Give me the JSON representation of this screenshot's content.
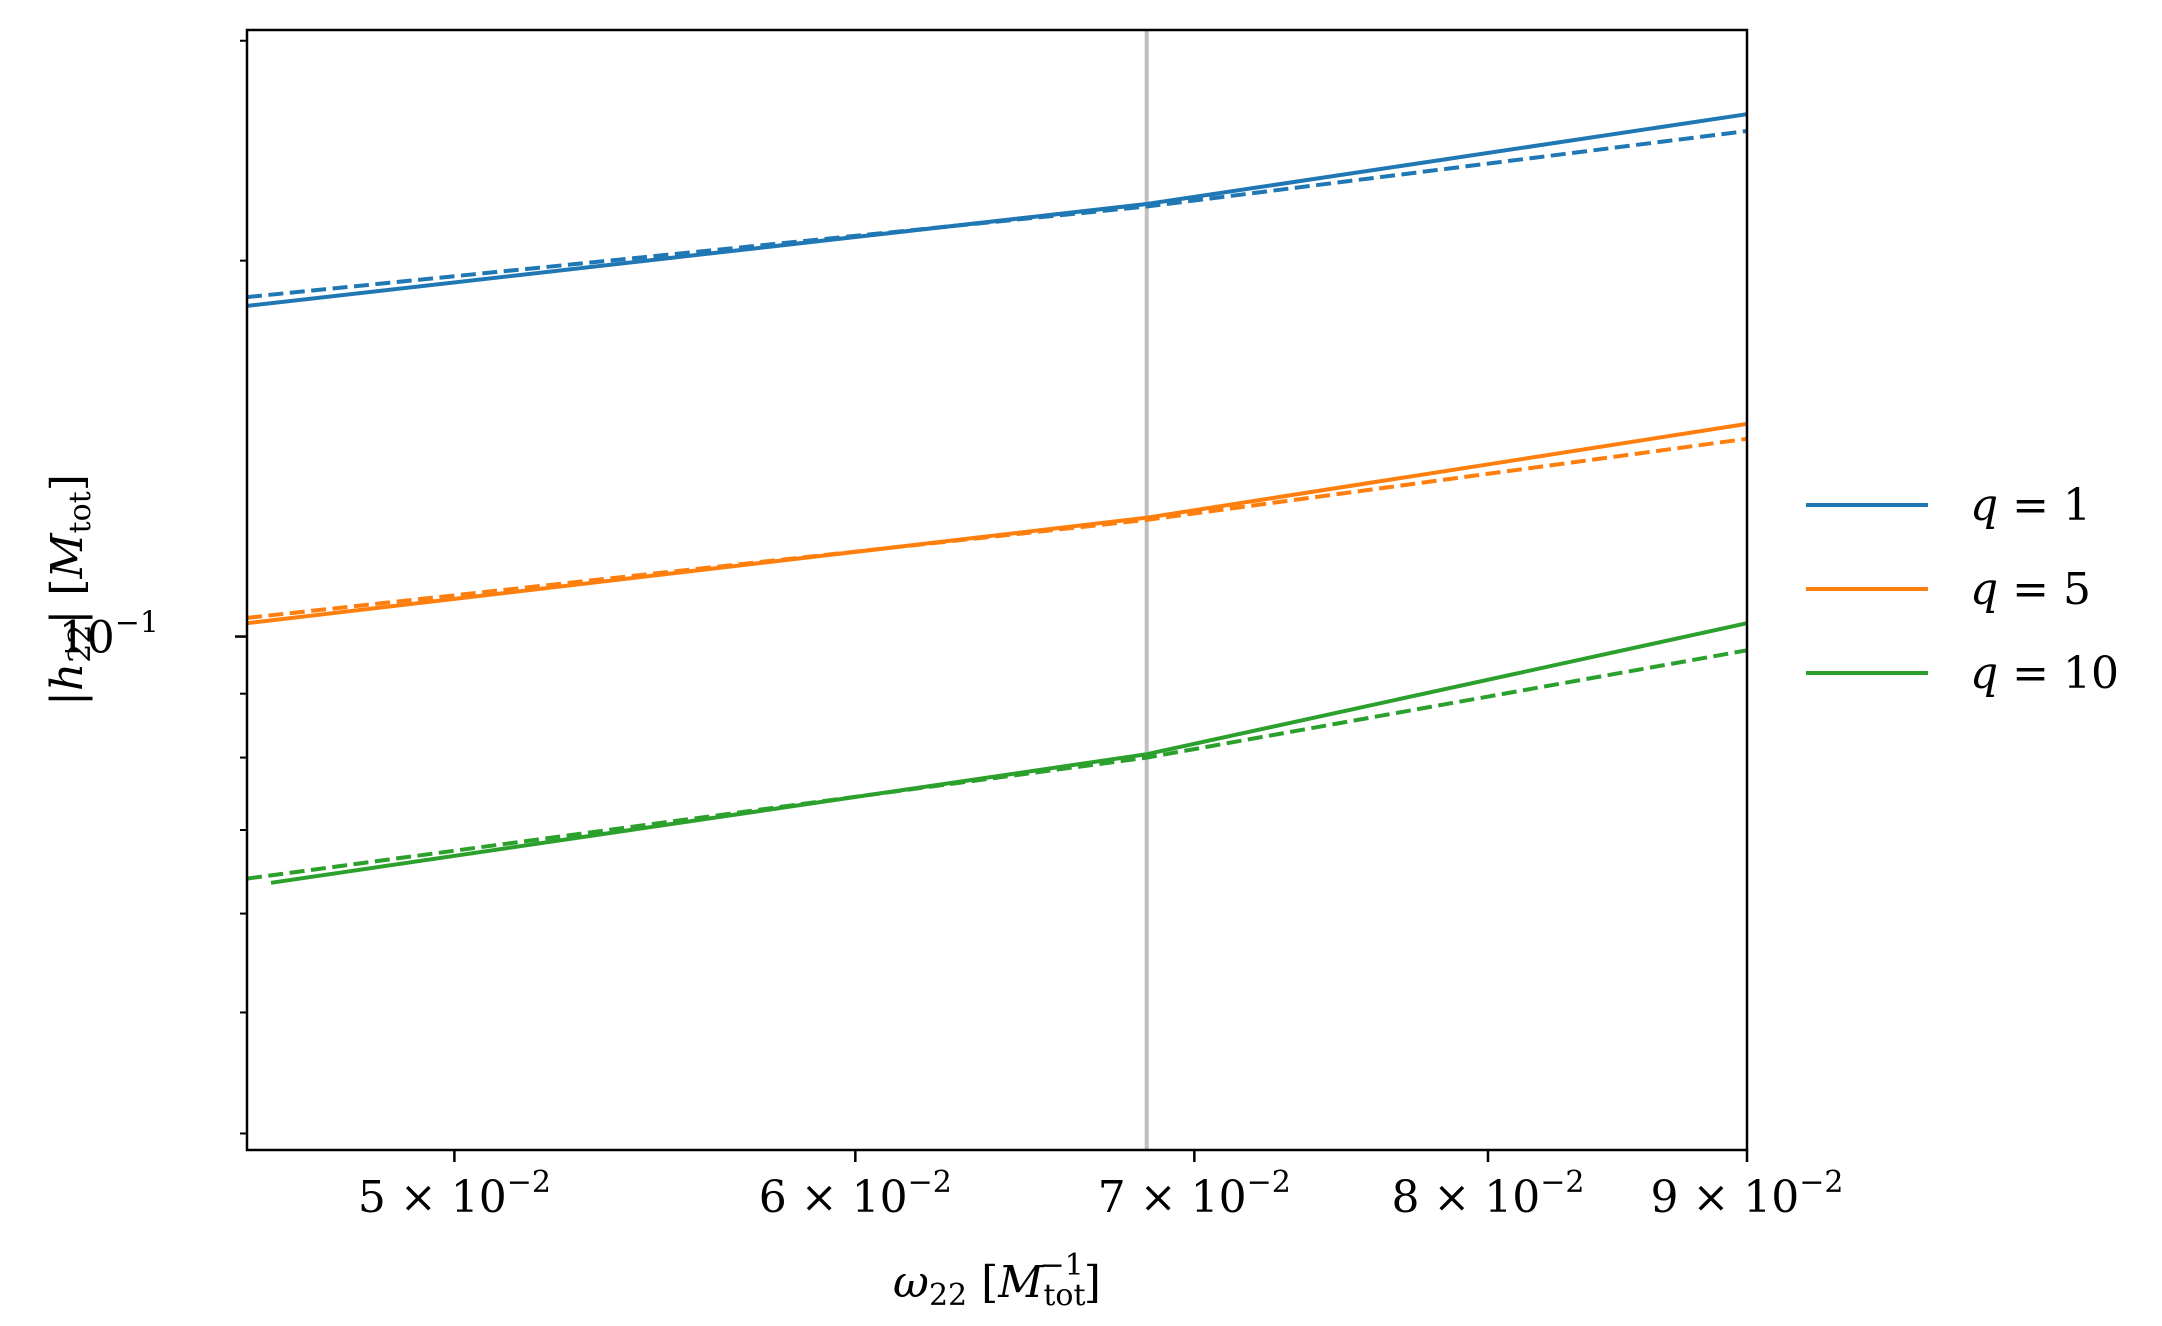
{
  "chart_data": {
    "type": "line",
    "xlabel": "ω₂₂ [M_tot⁻¹]",
    "xlabel_parts": {
      "sym": "ω",
      "sub": "22",
      "bracket_open": "[",
      "M": "M",
      "msub": "tot",
      "msup": "−1",
      "bracket_close": "]"
    },
    "ylabel": "|h₂₂| [M_tot]",
    "ylabel_parts": {
      "bar_open": "|",
      "sym": "h",
      "sub": "22",
      "bar_close": "|",
      "bracket_open": "[",
      "M": "M",
      "msub": "tot",
      "bracket_close": "]"
    },
    "xscale": "log",
    "yscale": "log",
    "xlim": [
      0.0455,
      0.09
    ],
    "ylim": [
      0.0388,
      0.306
    ],
    "x_ticks": [
      {
        "value": 0.05,
        "mant": "5 × 10",
        "exp": "−2"
      },
      {
        "value": 0.06,
        "mant": "6 × 10",
        "exp": "−2"
      },
      {
        "value": 0.07,
        "mant": "7 × 10",
        "exp": "−2"
      },
      {
        "value": 0.08,
        "mant": "8 × 10",
        "exp": "−2"
      },
      {
        "value": 0.09,
        "mant": "9 × 10",
        "exp": "−2"
      }
    ],
    "y_ticks": [
      {
        "value": 0.1,
        "mant": "10",
        "exp": "−1"
      }
    ],
    "y_minor_ticks": [
      0.04,
      0.05,
      0.06,
      0.07,
      0.08,
      0.09,
      0.2,
      0.3
    ],
    "vline": {
      "x": 0.0685,
      "color": "#bfbfbf"
    },
    "grid": false,
    "legend_position": "right-outside",
    "series": [
      {
        "name": "q = 1",
        "color": "#1f77b4",
        "style": "solid",
        "x": [
          0.0455,
          0.0685,
          0.09
        ],
        "y": [
          0.184,
          0.222,
          0.262
        ]
      },
      {
        "name": "q = 1",
        "color": "#1f77b4",
        "style": "dashed",
        "x": [
          0.0455,
          0.0685,
          0.09
        ],
        "y": [
          0.187,
          0.221,
          0.254
        ],
        "legend": false
      },
      {
        "name": "q = 5",
        "color": "#ff7f0e",
        "style": "solid",
        "x": [
          0.0455,
          0.0685,
          0.09
        ],
        "y": [
          0.1025,
          0.1245,
          0.148
        ]
      },
      {
        "name": "q = 5",
        "color": "#ff7f0e",
        "style": "dashed",
        "x": [
          0.0455,
          0.0685,
          0.09
        ],
        "y": [
          0.1035,
          0.124,
          0.144
        ],
        "legend": false
      },
      {
        "name": "q = 10",
        "color": "#2ca02c",
        "style": "solid",
        "x": [
          0.046,
          0.0685,
          0.09
        ],
        "y": [
          0.0635,
          0.0805,
          0.1025
        ]
      },
      {
        "name": "q = 10",
        "color": "#2ca02c",
        "style": "dashed",
        "x": [
          0.0455,
          0.0685,
          0.09
        ],
        "y": [
          0.064,
          0.08,
          0.0975
        ],
        "legend": false
      }
    ],
    "legend": [
      {
        "var": "q",
        "eq": " = ",
        "num": "1",
        "color": "#1f77b4"
      },
      {
        "var": "q",
        "eq": " = ",
        "num": "5",
        "color": "#ff7f0e"
      },
      {
        "var": "q",
        "eq": " = ",
        "num": "10",
        "color": "#2ca02c"
      }
    ]
  }
}
